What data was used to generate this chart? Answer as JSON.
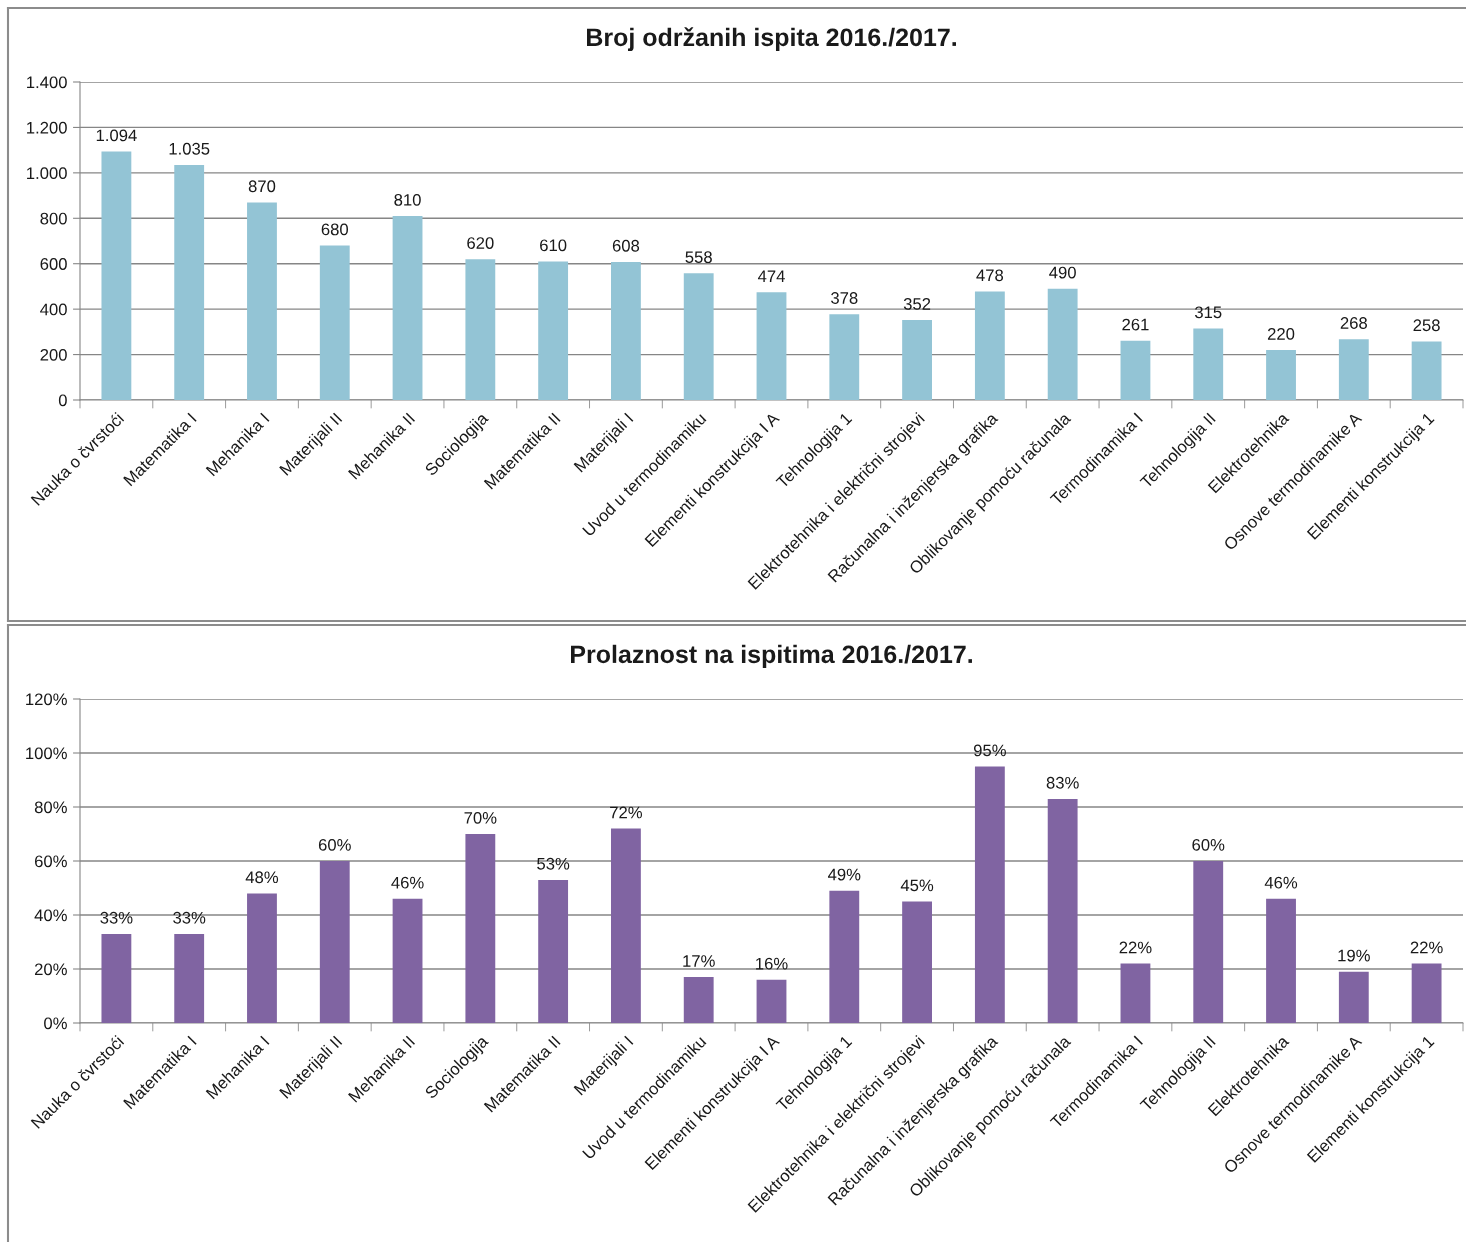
{
  "chart_data": [
    {
      "type": "bar",
      "title": "Broj održanih ispita 2016./2017.",
      "categories": [
        "Nauka o čvrstoći",
        "Matematika I",
        "Mehanika I",
        "Materijali II",
        "Mehanika II",
        "Sociologija",
        "Matematika II",
        "Materijali I",
        "Uvod u termodinamiku",
        "Elementi konstrukcija I A",
        "Tehnologija 1",
        "Elektrotehnika i električni strojevi",
        "Računalna i inženjerska grafika",
        "Oblikovanje pomoću računala",
        "Termodinamika I",
        "Tehnologija II",
        "Elektrotehnika",
        "Osnove termodinamike A",
        "Elementi konstrukcija 1"
      ],
      "values": [
        1094,
        1035,
        870,
        680,
        810,
        620,
        610,
        608,
        558,
        474,
        378,
        352,
        478,
        490,
        261,
        315,
        220,
        268,
        258
      ],
      "value_labels": [
        "1.094",
        "1.035",
        "870",
        "680",
        "810",
        "620",
        "610",
        "608",
        "558",
        "474",
        "378",
        "352",
        "478",
        "490",
        "261",
        "315",
        "220",
        "268",
        "258"
      ],
      "color": "#93c4d5",
      "ylim": [
        0,
        1400
      ],
      "yticks": [
        0,
        200,
        400,
        600,
        800,
        {
          "value": 1000,
          "label": "1.000"
        },
        {
          "value": 1200,
          "label": "1.200"
        },
        {
          "value": 1400,
          "label": "1.400"
        }
      ],
      "grid": "y"
    },
    {
      "type": "bar",
      "title": "Prolaznost na ispitima 2016./2017.",
      "categories": [
        "Nauka o čvrstoći",
        "Matematika I",
        "Mehanika I",
        "Materijali II",
        "Mehanika II",
        "Sociologija",
        "Matematika II",
        "Materijali I",
        "Uvod u termodinamiku",
        "Elementi konstrukcija I A",
        "Tehnologija 1",
        "Elektrotehnika i električni strojevi",
        "Računalna i inženjerska grafika",
        "Oblikovanje pomoću računala",
        "Termodinamika I",
        "Tehnologija II",
        "Elektrotehnika",
        "Osnove termodinamike A",
        "Elementi konstrukcija 1"
      ],
      "values": [
        33,
        33,
        48,
        60,
        46,
        70,
        53,
        72,
        17,
        16,
        49,
        45,
        95,
        83,
        22,
        60,
        46,
        19,
        22
      ],
      "value_labels": [
        "33%",
        "33%",
        "48%",
        "60%",
        "46%",
        "70%",
        "53%",
        "72%",
        "17%",
        "16%",
        "49%",
        "45%",
        "95%",
        "83%",
        "22%",
        "60%",
        "46%",
        "19%",
        "22%"
      ],
      "color": "#8064a2",
      "ylim": [
        0,
        120
      ],
      "yticks": [
        {
          "value": 0,
          "label": "0%"
        },
        {
          "value": 20,
          "label": "20%"
        },
        {
          "value": 40,
          "label": "40%"
        },
        {
          "value": 60,
          "label": "60%"
        },
        {
          "value": 80,
          "label": "80%"
        },
        {
          "value": 100,
          "label": "100%"
        },
        {
          "value": 120,
          "label": "120%"
        }
      ],
      "grid": "y"
    }
  ]
}
